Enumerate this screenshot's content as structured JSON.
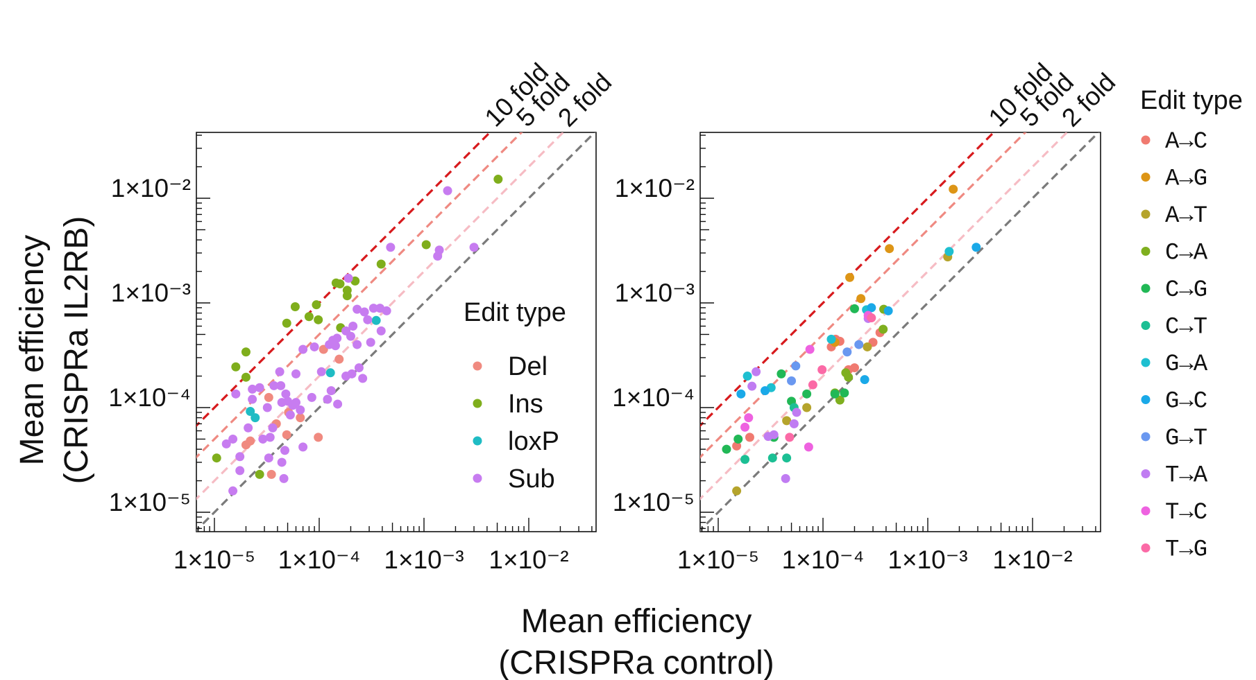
{
  "figure": {
    "ylabel_line1": "Mean efficiency",
    "ylabel_line2": "(CRISPRa IL2RB)",
    "xlabel_line1": "Mean efficiency",
    "xlabel_line2": "(CRISPRa control)"
  },
  "colors": {
    "fold_10": "#d7191c",
    "fold_5": "#ef8a82",
    "fold_2": "#f6bcc4",
    "fold_1": "#7a7a7a",
    "Del": "#f08a80",
    "Ins": "#7fae1c",
    "loxP": "#1fbcc4",
    "Sub": "#c77cf0",
    "A→C": "#f07a70",
    "A→G": "#dd9516",
    "A→T": "#b5a42c",
    "C→A": "#7faf1f",
    "C→G": "#21b856",
    "C→T": "#1cbf94",
    "G→A": "#1ebfd0",
    "G→C": "#1aa9e8",
    "G→T": "#6a98f0",
    "T→A": "#c07cf2",
    "T→C": "#ee62e0",
    "T→G": "#fb6aa6"
  },
  "chart_data": [
    {
      "type": "scatter",
      "title": "",
      "xlabel": "Mean efficiency (CRISPRa control)",
      "ylabel": "Mean efficiency (CRISPRa IL2RB)",
      "xscale": "log",
      "yscale": "log",
      "xlim": [
        7e-06,
        0.045
      ],
      "ylim": [
        7e-06,
        0.045
      ],
      "x_ticks": [
        "1×10⁻⁵",
        "1×10⁻⁴",
        "1×10⁻³",
        "1×10⁻²"
      ],
      "y_ticks": [
        "1×10⁻⁵",
        "1×10⁻⁴",
        "1×10⁻³",
        "1×10⁻²"
      ],
      "reference_lines": [
        {
          "label": "10 fold",
          "ratio": 10
        },
        {
          "label": "5 fold",
          "ratio": 5
        },
        {
          "label": "2 fold",
          "ratio": 2
        },
        {
          "label": "",
          "ratio": 1
        }
      ],
      "legend_title": "Edit type",
      "legend_position": "inside-right",
      "series": [
        {
          "name": "Del",
          "points": [
            [
              0.000155,
              0.00029
            ],
            [
              0.00011,
              0.00036
            ],
            [
              3.3e-05,
              0.000125
            ],
            [
              2.2e-05,
              4.8e-05
            ],
            [
              2e-05,
              4.4e-05
            ],
            [
              3.9e-05,
              7e-05
            ],
            [
              4.9e-05,
              5.5e-05
            ],
            [
              6.6e-05,
              8e-05
            ],
            [
              5.1e-05,
              9e-05
            ],
            [
              9.8e-05,
              5.2e-05
            ],
            [
              3.5e-05,
              2.3e-05
            ]
          ]
        },
        {
          "name": "Ins",
          "points": [
            [
              0.0051,
              0.0152
            ],
            [
              0.00105,
              0.0036
            ],
            [
              0.00039,
              0.00235
            ],
            [
              0.000145,
              0.00155
            ],
            [
              0.000158,
              0.00152
            ],
            [
              0.00022,
              0.00162
            ],
            [
              0.000185,
              0.00132
            ],
            [
              0.000185,
              0.00117
            ],
            [
              5.9e-05,
              0.00092
            ],
            [
              9.4e-05,
              0.00096
            ],
            [
              8e-05,
              0.00074
            ],
            [
              9.8e-05,
              0.00069
            ],
            [
              4.9e-05,
              0.00064
            ],
            [
              0.00016,
              0.00058
            ],
            [
              2e-05,
              0.00034
            ],
            [
              1.6e-05,
              0.000245
            ],
            [
              2e-05,
              0.000195
            ],
            [
              1.05e-05,
              3.3e-05
            ],
            [
              2.7e-05,
              2.3e-05
            ]
          ]
        },
        {
          "name": "loxP",
          "points": [
            [
              0.00035,
              0.00068
            ],
            [
              0.000128,
              0.000215
            ],
            [
              2.2e-05,
              9.2e-05
            ],
            [
              2.45e-05,
              8e-05
            ]
          ]
        },
        {
          "name": "Sub",
          "points": [
            [
              0.00168,
              0.0118
            ],
            [
              0.003,
              0.0034
            ],
            [
              0.00135,
              0.0028
            ],
            [
              0.0014,
              0.0032
            ],
            [
              0.00048,
              0.0034
            ],
            [
              0.00019,
              0.00172
            ],
            [
              0.00033,
              0.00089
            ],
            [
              0.00044,
              0.00084
            ],
            [
              0.00038,
              0.00089
            ],
            [
              0.00027,
              0.00082
            ],
            [
              0.00029,
              0.00069
            ],
            [
              0.00023,
              0.00087
            ],
            [
              0.00021,
              0.0006
            ],
            [
              0.00018,
              0.00054
            ],
            [
              0.000148,
              0.00046
            ],
            [
              0.000135,
              0.00044
            ],
            [
              0.000125,
              0.0004
            ],
            [
              0.000143,
              0.00039
            ],
            [
              9e-05,
              0.00038
            ],
            [
              7e-05,
              0.00036
            ],
            [
              0.00039,
              0.00054
            ],
            [
              0.00031,
              0.00042
            ],
            [
              0.00023,
              0.0004
            ],
            [
              0.0002,
              0.00048
            ],
            [
              0.00024,
              0.00024
            ],
            [
              0.000205,
              0.00021
            ],
            [
              0.00018,
              0.0002
            ],
            [
              0.00026,
              0.00019
            ],
            [
              0.000105,
              0.00022
            ],
            [
              6e-05,
              0.00021
            ],
            [
              4.2e-05,
              0.00022
            ],
            [
              4.3e-05,
              0.000162
            ],
            [
              3.7e-05,
              0.000162
            ],
            [
              2.7e-05,
              0.000155
            ],
            [
              2.3e-05,
              0.00015
            ],
            [
              1.6e-05,
              0.000135
            ],
            [
              0.00013,
              0.000145
            ],
            [
              0.00012,
              0.00012
            ],
            [
              0.00015,
              0.000108
            ],
            [
              8.5e-05,
              0.000125
            ],
            [
              6.6e-05,
              9.5e-05
            ],
            [
              6e-05,
              0.000112
            ],
            [
              5e-05,
              0.000115
            ],
            [
              4.4e-05,
              0.000112
            ],
            [
              3.2e-05,
              0.0001
            ],
            [
              2.3e-05,
              0.00012
            ],
            [
              5.6e-05,
              0.000105
            ],
            [
              4.8e-05,
              0.000135
            ],
            [
              5.3e-05,
              8.5e-05
            ],
            [
              3.6e-05,
              6.4e-05
            ],
            [
              2.9e-05,
              5e-05
            ],
            [
              3.4e-05,
              5.2e-05
            ],
            [
              2.1e-05,
              6.4e-05
            ],
            [
              1.5e-05,
              5e-05
            ],
            [
              1.3e-05,
              4.5e-05
            ],
            [
              7e-05,
              4.2e-05
            ],
            [
              4.7e-05,
              3.9e-05
            ],
            [
              3.3e-05,
              3.3e-05
            ],
            [
              4.4e-05,
              3e-05
            ],
            [
              4.6e-05,
              2.1e-05
            ],
            [
              1.75e-05,
              3.4e-05
            ],
            [
              1.5e-05,
              1.6e-05
            ],
            [
              1.75e-05,
              2.5e-05
            ]
          ]
        }
      ]
    },
    {
      "type": "scatter",
      "title": "",
      "xlabel": "Mean efficiency (CRISPRa control)",
      "ylabel": "Mean efficiency (CRISPRa IL2RB)",
      "xscale": "log",
      "yscale": "log",
      "xlim": [
        7e-06,
        0.045
      ],
      "ylim": [
        7e-06,
        0.045
      ],
      "x_ticks": [
        "1×10⁻⁵",
        "1×10⁻⁴",
        "1×10⁻³",
        "1×10⁻²"
      ],
      "y_ticks": [
        "1×10⁻⁵",
        "1×10⁻⁴",
        "1×10⁻³",
        "1×10⁻²"
      ],
      "reference_lines": [
        {
          "label": "10 fold",
          "ratio": 10
        },
        {
          "label": "5 fold",
          "ratio": 5
        },
        {
          "label": "2 fold",
          "ratio": 2
        },
        {
          "label": "",
          "ratio": 1
        }
      ],
      "legend_title": "Edit type",
      "legend_position": "outside-right",
      "series": [
        {
          "name": "A→C",
          "points": [
            [
              0.000132,
              0.00045
            ],
            [
              0.000145,
              0.00043
            ],
            [
              0.00012,
              0.00038
            ],
            [
              0.00035,
              0.00052
            ],
            [
              0.0003,
              0.00042
            ],
            [
              0.0002,
              0.00024
            ],
            [
              0.000175,
              0.00023
            ],
            [
              1.5e-05,
              4.3e-05
            ],
            [
              2e-05,
              5.2e-05
            ]
          ]
        },
        {
          "name": "A→G",
          "points": [
            [
              0.00175,
              0.0122
            ],
            [
              0.00043,
              0.0033
            ],
            [
              0.00018,
              0.00175
            ],
            [
              0.00023,
              0.0011
            ],
            [
              0.00013,
              0.00042
            ]
          ]
        },
        {
          "name": "A→T",
          "points": [
            [
              0.00155,
              0.00275
            ],
            [
              0.000265,
              0.00038
            ],
            [
              7e-05,
              0.0001
            ],
            [
              4.5e-05,
              7.5e-05
            ],
            [
              1.5e-05,
              1.6e-05
            ]
          ]
        },
        {
          "name": "C→A",
          "points": [
            [
              0.00038,
              0.00087
            ],
            [
              0.000375,
              0.00056
            ],
            [
              0.000165,
              0.000215
            ],
            [
              0.000175,
              0.000195
            ],
            [
              0.00013,
              0.000138
            ],
            [
              0.000145,
              0.000118
            ]
          ]
        },
        {
          "name": "C→G",
          "points": [
            [
              0.0002,
              0.00088
            ],
            [
              0.00016,
              0.000138
            ],
            [
              0.00013,
              0.000135
            ],
            [
              7e-05,
              0.000135
            ],
            [
              5e-05,
              0.000115
            ],
            [
              4e-05,
              0.00021
            ],
            [
              1.55e-05,
              5e-05
            ],
            [
              1.2e-05,
              4e-05
            ],
            [
              3.4e-05,
              5.2e-05
            ]
          ]
        },
        {
          "name": "C→T",
          "points": [
            [
              1.8e-05,
              3.2e-05
            ],
            [
              3.3e-05,
              3.3e-05
            ],
            [
              4.5e-05,
              3.3e-05
            ],
            [
              5.3e-05,
              0.0001
            ]
          ]
        },
        {
          "name": "G→A",
          "points": [
            [
              0.0016,
              0.0031
            ],
            [
              0.00026,
              0.00086
            ],
            [
              0.00012,
              0.00045
            ],
            [
              1.9e-05,
              0.0002
            ],
            [
              3.2e-05,
              0.000155
            ]
          ]
        },
        {
          "name": "G→C",
          "points": [
            [
              0.0029,
              0.0034
            ],
            [
              0.00029,
              0.0009
            ],
            [
              0.00042,
              0.00084
            ],
            [
              0.00025,
              0.000185
            ],
            [
              1.65e-05,
              0.000135
            ],
            [
              2.8e-05,
              0.000145
            ]
          ]
        },
        {
          "name": "G→T",
          "points": [
            [
              5.5e-05,
              0.00025
            ],
            [
              0.00017,
              0.00034
            ],
            [
              5e-05,
              0.00018
            ],
            [
              0.00022,
              0.0004
            ]
          ]
        },
        {
          "name": "T→A",
          "points": [
            [
              0.00027,
              0.00071
            ],
            [
              2.3e-05,
              0.00022
            ],
            [
              2.1e-05,
              0.00016
            ],
            [
              5.6e-05,
              9e-05
            ],
            [
              5.3e-05,
              7e-05
            ],
            [
              4.4e-05,
              2.1e-05
            ],
            [
              3e-05,
              5.3e-05
            ],
            [
              3.4e-05,
              5.5e-05
            ]
          ]
        },
        {
          "name": "T→C",
          "points": [
            [
              0.00027,
              0.00076
            ],
            [
              7.5e-05,
              0.00036
            ],
            [
              7.3e-05,
              4.2e-05
            ],
            [
              1.95e-05,
              8e-05
            ],
            [
              1.8e-05,
              6.5e-05
            ]
          ]
        },
        {
          "name": "T→G",
          "points": [
            [
              0.00029,
              0.00072
            ],
            [
              9.8e-05,
              0.00023
            ],
            [
              8e-05,
              0.000165
            ],
            [
              4.8e-05,
              5.2e-05
            ]
          ]
        }
      ]
    }
  ]
}
